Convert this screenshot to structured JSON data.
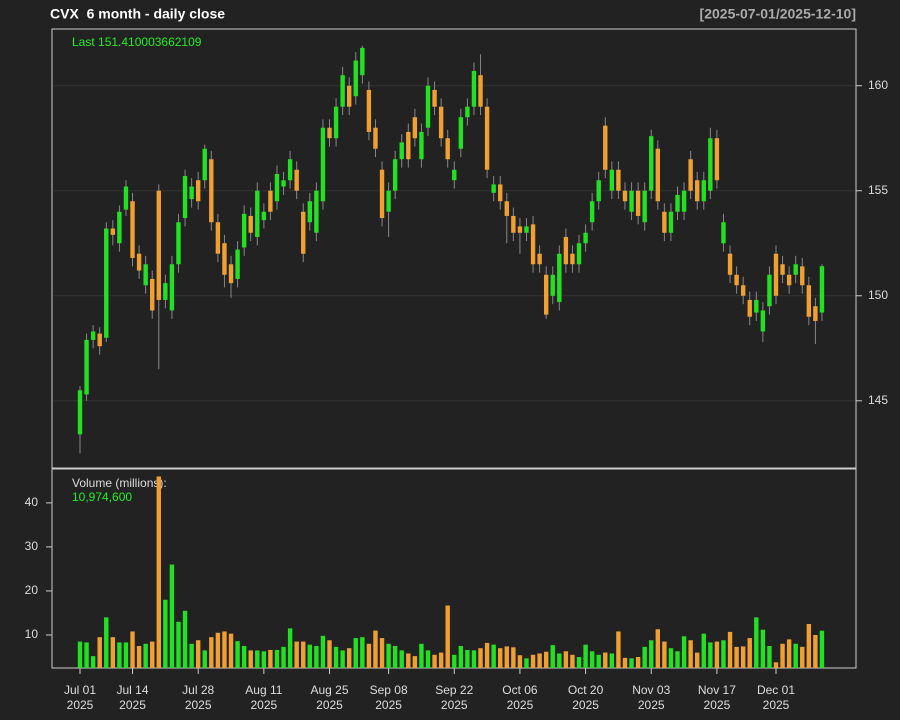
{
  "chart_data": [
    {
      "type": "candlestick",
      "title": "CVX  6 month - daily close",
      "subtitle": "[2025-07-01/2025-12-10]",
      "annotation": "Last 151.410003662109",
      "up_color": "#22e022",
      "down_color": "#f0a030",
      "ylim": [
        141.8,
        162.7
      ],
      "yticks": [
        145,
        150,
        155,
        160
      ],
      "grid": true,
      "x": [
        "2025-07-01",
        "2025-07-02",
        "2025-07-03",
        "2025-07-07",
        "2025-07-08",
        "2025-07-09",
        "2025-07-10",
        "2025-07-11",
        "2025-07-14",
        "2025-07-15",
        "2025-07-16",
        "2025-07-17",
        "2025-07-18",
        "2025-07-21",
        "2025-07-22",
        "2025-07-23",
        "2025-07-24",
        "2025-07-25",
        "2025-07-28",
        "2025-07-29",
        "2025-07-30",
        "2025-07-31",
        "2025-08-01",
        "2025-08-04",
        "2025-08-05",
        "2025-08-06",
        "2025-08-07",
        "2025-08-08",
        "2025-08-11",
        "2025-08-12",
        "2025-08-13",
        "2025-08-14",
        "2025-08-15",
        "2025-08-18",
        "2025-08-19",
        "2025-08-20",
        "2025-08-21",
        "2025-08-22",
        "2025-08-25",
        "2025-08-26",
        "2025-08-27",
        "2025-08-28",
        "2025-08-29",
        "2025-09-02",
        "2025-09-03",
        "2025-09-04",
        "2025-09-05",
        "2025-09-08",
        "2025-09-09",
        "2025-09-10",
        "2025-09-11",
        "2025-09-12",
        "2025-09-15",
        "2025-09-16",
        "2025-09-17",
        "2025-09-18",
        "2025-09-19",
        "2025-09-22",
        "2025-09-23",
        "2025-09-24",
        "2025-09-25",
        "2025-09-26",
        "2025-09-29",
        "2025-09-30",
        "2025-10-01",
        "2025-10-02",
        "2025-10-03",
        "2025-10-06",
        "2025-10-07",
        "2025-10-08",
        "2025-10-09",
        "2025-10-10",
        "2025-10-13",
        "2025-10-14",
        "2025-10-15",
        "2025-10-16",
        "2025-10-17",
        "2025-10-20",
        "2025-10-21",
        "2025-10-22",
        "2025-10-23",
        "2025-10-24",
        "2025-10-27",
        "2025-10-28",
        "2025-10-29",
        "2025-10-30",
        "2025-10-31",
        "2025-11-03",
        "2025-11-04",
        "2025-11-05",
        "2025-11-06",
        "2025-11-07",
        "2025-11-10",
        "2025-11-11",
        "2025-11-12",
        "2025-11-13",
        "2025-11-14",
        "2025-11-17",
        "2025-11-18",
        "2025-11-19",
        "2025-11-20",
        "2025-11-21",
        "2025-11-24",
        "2025-11-25",
        "2025-11-26",
        "2025-11-28",
        "2025-12-01",
        "2025-12-02",
        "2025-12-03",
        "2025-12-04",
        "2025-12-05",
        "2025-12-08",
        "2025-12-09",
        "2025-12-10"
      ],
      "xticks": [
        {
          "value": "2025-07-01",
          "label": "Jul 01",
          "sublabel": "2025"
        },
        {
          "value": "2025-07-14",
          "label": "Jul 14",
          "sublabel": "2025"
        },
        {
          "value": "2025-07-28",
          "label": "Jul 28",
          "sublabel": "2025"
        },
        {
          "value": "2025-08-11",
          "label": "Aug 11",
          "sublabel": "2025"
        },
        {
          "value": "2025-08-25",
          "label": "Aug 25",
          "sublabel": "2025"
        },
        {
          "value": "2025-09-08",
          "label": "Sep 08",
          "sublabel": "2025"
        },
        {
          "value": "2025-09-22",
          "label": "Sep 22",
          "sublabel": "2025"
        },
        {
          "value": "2025-10-06",
          "label": "Oct 06",
          "sublabel": "2025"
        },
        {
          "value": "2025-10-20",
          "label": "Oct 20",
          "sublabel": "2025"
        },
        {
          "value": "2025-11-03",
          "label": "Nov 03",
          "sublabel": "2025"
        },
        {
          "value": "2025-11-17",
          "label": "Nov 17",
          "sublabel": "2025"
        },
        {
          "value": "2025-12-01",
          "label": "Dec 01",
          "sublabel": "2025"
        }
      ],
      "open": [
        143.4,
        145.3,
        147.9,
        148.2,
        148.0,
        153.2,
        152.5,
        154.1,
        154.5,
        152.0,
        150.5,
        150.8,
        155.0,
        149.8,
        149.3,
        151.5,
        153.7,
        154.6,
        155.5,
        155.5,
        156.5,
        153.5,
        152.5,
        151.5,
        150.8,
        152.3,
        153.8,
        152.8,
        153.6,
        155.0,
        154.5,
        155.2,
        155.5,
        156.0,
        154.0,
        153.5,
        153.0,
        154.5,
        158.0,
        157.5,
        159.0,
        160.0,
        159.5,
        160.5,
        159.8,
        158.0,
        156.0,
        154.0,
        155.0,
        156.5,
        157.8,
        158.5,
        156.5,
        158.0,
        159.8,
        159.0,
        157.5,
        155.5,
        157.0,
        158.5,
        159.0,
        160.5,
        159.0,
        154.9,
        155.3,
        154.5,
        153.8,
        153.3,
        153.0,
        153.4,
        152.0,
        151.0,
        150.0,
        149.7,
        152.8,
        152.0,
        151.5,
        152.5,
        153.5,
        154.5,
        158.1,
        155.0,
        156.0,
        155.0,
        154.0,
        155.0,
        153.5,
        155.0,
        157.0,
        154.0,
        153.0,
        154.0,
        154.0,
        156.5,
        155.5,
        154.5,
        155.0,
        157.5,
        152.5,
        152.0,
        151.0,
        150.5,
        149.8,
        149.2,
        148.3,
        149.5,
        152.0,
        151.5,
        151.0,
        151.0,
        151.4,
        150.5,
        149.5,
        149.2
      ],
      "high": [
        145.7,
        148.2,
        148.6,
        148.5,
        153.5,
        153.6,
        154.3,
        155.5,
        154.9,
        152.4,
        151.9,
        151.2,
        155.3,
        151.0,
        151.9,
        153.9,
        156.0,
        155.6,
        155.9,
        157.2,
        156.9,
        153.9,
        152.9,
        151.9,
        152.6,
        154.3,
        154.2,
        155.4,
        154.4,
        155.4,
        156.2,
        155.9,
        156.9,
        156.4,
        154.4,
        154.9,
        155.4,
        158.4,
        158.4,
        159.4,
        160.9,
        160.4,
        161.6,
        161.9,
        160.2,
        158.4,
        156.4,
        155.4,
        156.9,
        157.7,
        158.2,
        158.9,
        158.2,
        160.4,
        160.2,
        159.4,
        157.9,
        156.4,
        158.9,
        159.4,
        161.1,
        161.5,
        159.4,
        155.7,
        155.7,
        154.9,
        154.2,
        153.7,
        153.7,
        153.8,
        152.4,
        151.4,
        151.4,
        152.4,
        153.2,
        152.4,
        152.9,
        153.4,
        154.9,
        155.9,
        158.5,
        156.4,
        156.4,
        155.4,
        155.4,
        155.4,
        155.4,
        157.9,
        157.4,
        154.4,
        154.4,
        155.2,
        155.4,
        156.9,
        155.9,
        155.9,
        158.0,
        157.9,
        153.9,
        152.4,
        151.4,
        150.9,
        150.2,
        150.2,
        149.7,
        151.4,
        152.4,
        151.9,
        151.4,
        151.9,
        151.8,
        150.9,
        149.9,
        151.5
      ],
      "low": [
        142.5,
        145.0,
        147.5,
        147.2,
        147.8,
        152.4,
        152.1,
        153.8,
        151.4,
        150.8,
        150.1,
        148.9,
        146.5,
        149.4,
        148.9,
        151.1,
        153.3,
        154.2,
        154.1,
        155.1,
        153.1,
        151.6,
        150.4,
        149.9,
        150.4,
        151.9,
        152.6,
        152.4,
        153.2,
        153.6,
        154.1,
        154.8,
        155.1,
        154.6,
        151.6,
        153.1,
        152.6,
        154.1,
        157.1,
        157.1,
        158.6,
        158.6,
        159.1,
        160.1,
        157.4,
        156.6,
        153.3,
        152.8,
        154.6,
        156.1,
        156.1,
        157.1,
        156.1,
        157.6,
        158.6,
        157.1,
        156.1,
        155.1,
        156.6,
        158.1,
        158.6,
        158.6,
        155.6,
        154.5,
        154.1,
        152.5,
        152.6,
        152.0,
        152.6,
        151.1,
        151.1,
        148.9,
        149.6,
        149.3,
        151.1,
        151.1,
        151.1,
        152.1,
        153.1,
        154.1,
        155.6,
        154.6,
        154.6,
        154.1,
        153.6,
        153.4,
        153.1,
        154.6,
        154.1,
        152.6,
        152.6,
        153.6,
        153.6,
        154.6,
        154.1,
        154.1,
        154.6,
        155.1,
        152.1,
        150.6,
        150.1,
        149.6,
        148.6,
        148.8,
        147.8,
        149.1,
        149.6,
        150.6,
        150.1,
        150.6,
        150.1,
        148.6,
        147.7,
        148.8
      ],
      "close": [
        145.5,
        147.9,
        148.3,
        147.6,
        153.2,
        152.9,
        154.0,
        155.2,
        151.8,
        151.2,
        151.5,
        149.3,
        149.8,
        150.6,
        151.5,
        153.5,
        155.7,
        155.2,
        154.5,
        157.0,
        153.5,
        152.0,
        151.0,
        150.6,
        152.2,
        153.9,
        153.0,
        155.0,
        154.0,
        154.0,
        155.8,
        155.5,
        156.5,
        155.0,
        152.0,
        154.5,
        155.0,
        158.0,
        157.5,
        159.0,
        160.5,
        159.0,
        161.2,
        161.8,
        157.8,
        157.0,
        153.7,
        155.0,
        156.5,
        157.3,
        156.5,
        157.5,
        157.8,
        160.0,
        159.0,
        157.5,
        156.5,
        156.0,
        158.5,
        159.0,
        160.7,
        159.0,
        156.0,
        155.3,
        154.5,
        153.8,
        153.0,
        153.0,
        153.3,
        151.5,
        151.5,
        149.1,
        151.0,
        152.0,
        151.5,
        151.5,
        152.5,
        153.0,
        154.5,
        155.5,
        156.0,
        156.0,
        155.0,
        154.5,
        155.0,
        153.8,
        155.0,
        157.6,
        154.5,
        153.0,
        154.0,
        154.8,
        155.0,
        155.0,
        154.5,
        155.5,
        157.5,
        155.5,
        153.5,
        151.0,
        150.5,
        150.0,
        149.0,
        149.8,
        149.3,
        151.0,
        150.0,
        151.0,
        150.5,
        151.5,
        150.5,
        149.0,
        148.8,
        151.41
      ]
    },
    {
      "type": "bar",
      "title": "Volume (millions):",
      "annotation": "10,974,600",
      "ylim": [
        2.5,
        47.7
      ],
      "yticks": [
        10,
        20,
        30,
        40
      ],
      "values": [
        8.5,
        8.3,
        5.2,
        9.5,
        14,
        9.5,
        8.3,
        8.3,
        10.8,
        7.5,
        8,
        8.5,
        46,
        18,
        26,
        13,
        15.5,
        8,
        8.8,
        6.5,
        9.5,
        10.5,
        10.8,
        10.3,
        8.6,
        7.5,
        6.5,
        6.5,
        6.3,
        6.6,
        6.6,
        7.3,
        11.5,
        8.5,
        8.5,
        7.8,
        7.5,
        9.8,
        8.8,
        7.3,
        6.5,
        7,
        9.3,
        9.5,
        8,
        11,
        9.3,
        8,
        7.5,
        6.5,
        5.8,
        5.2,
        8,
        6.5,
        5.5,
        6,
        16.7,
        5.5,
        7.5,
        6.6,
        6.5,
        7,
        8.2,
        7.8,
        7,
        7.4,
        7.2,
        5.4,
        4.7,
        5.5,
        5.8,
        6.2,
        7.7,
        5.8,
        6.3,
        5.5,
        5,
        7.8,
        6.3,
        5.5,
        6,
        5.8,
        10.8,
        4.8,
        4.7,
        5,
        7.3,
        8.8,
        11.3,
        8.5,
        7,
        6.3,
        9.7,
        8.8,
        6,
        10.3,
        8.3,
        8.5,
        8.8,
        10.7,
        7.3,
        7.4,
        9.3,
        14,
        11.2,
        7.5,
        3.8,
        8,
        9,
        8,
        7.3,
        12.5,
        10,
        10.9746
      ]
    }
  ]
}
